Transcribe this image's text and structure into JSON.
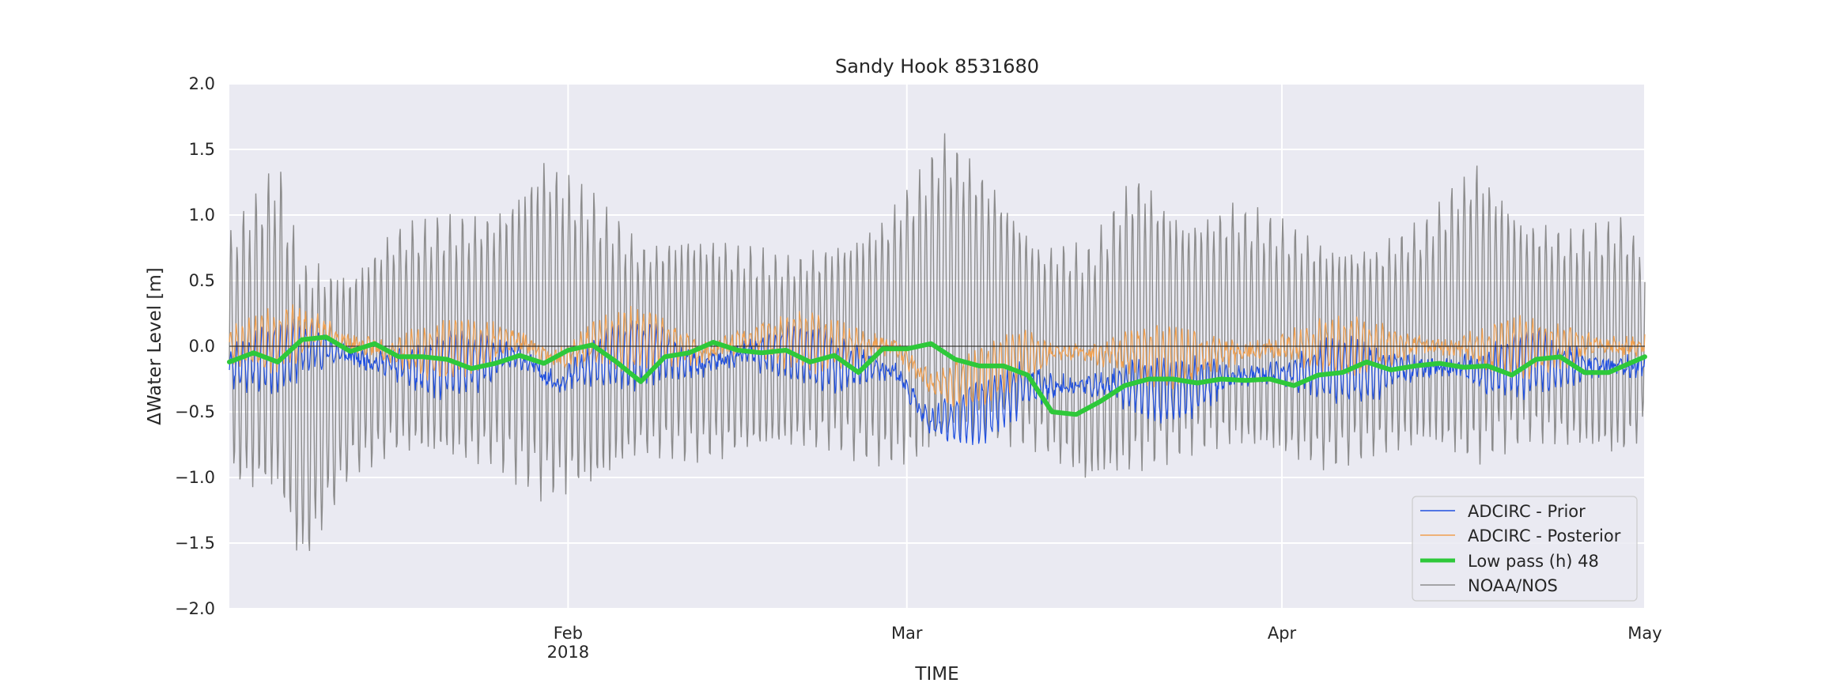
{
  "chart_data": {
    "type": "line",
    "title": "Sandy Hook  8531680",
    "xlabel": "TIME",
    "ylabel": "ΔWater Level [m]",
    "xlim": [
      "2018-01-04",
      "2018-05-01"
    ],
    "ylim": [
      -2.0,
      2.0
    ],
    "yticks": [
      -2.0,
      -1.5,
      -1.0,
      -0.5,
      0.0,
      0.5,
      1.0,
      1.5,
      2.0
    ],
    "ytick_labels": [
      "−2.0",
      "−1.5",
      "−1.0",
      "−0.5",
      "0.0",
      "0.5",
      "1.0",
      "1.5",
      "2.0"
    ],
    "xticks": [
      {
        "date": "2018-02-01",
        "label": "Feb",
        "sublabel": "2018"
      },
      {
        "date": "2018-03-01",
        "label": "Mar",
        "sublabel": ""
      },
      {
        "date": "2018-04-01",
        "label": "Apr",
        "sublabel": ""
      },
      {
        "date": "2018-05-01",
        "label": "May",
        "sublabel": ""
      }
    ],
    "grid": true,
    "legend_position": "lower-right",
    "colors": {
      "background": "#eaeaf2",
      "grid": "#ffffff",
      "prior": "#1f4fe0",
      "posterior": "#f0a050",
      "lowpass": "#2ec83a",
      "noaa": "#8c8c8c",
      "zero_line": "#333333"
    },
    "series": [
      {
        "name": "ADCIRC - Prior",
        "style": "thin",
        "low_frequency": {
          "dates": [
            "2018-01-04",
            "2018-01-08",
            "2018-01-11",
            "2018-01-15",
            "2018-01-20",
            "2018-01-24",
            "2018-01-28",
            "2018-01-31",
            "2018-02-04",
            "2018-02-08",
            "2018-02-12",
            "2018-02-16",
            "2018-02-20",
            "2018-02-24",
            "2018-02-28",
            "2018-03-03",
            "2018-03-07",
            "2018-03-11",
            "2018-03-15",
            "2018-03-19",
            "2018-03-23",
            "2018-03-27",
            "2018-04-01",
            "2018-04-05",
            "2018-04-09",
            "2018-04-14",
            "2018-04-18",
            "2018-04-22",
            "2018-04-26",
            "2018-05-01"
          ],
          "values": [
            -0.15,
            -0.08,
            0.0,
            -0.1,
            -0.18,
            -0.12,
            -0.08,
            -0.28,
            -0.1,
            -0.05,
            -0.15,
            -0.05,
            -0.05,
            -0.15,
            -0.18,
            -0.6,
            -0.5,
            -0.3,
            -0.3,
            -0.3,
            -0.35,
            -0.25,
            -0.2,
            -0.18,
            -0.2,
            -0.15,
            -0.2,
            -0.12,
            -0.15,
            -0.15
          ]
        },
        "tidal_amplitude": 0.22
      },
      {
        "name": "ADCIRC - Posterior",
        "style": "thin",
        "low_frequency": {
          "dates": [
            "2018-01-04",
            "2018-01-08",
            "2018-01-11",
            "2018-01-15",
            "2018-01-20",
            "2018-01-24",
            "2018-01-28",
            "2018-01-31",
            "2018-02-04",
            "2018-02-08",
            "2018-02-12",
            "2018-02-16",
            "2018-02-20",
            "2018-02-24",
            "2018-02-28",
            "2018-03-03",
            "2018-03-07",
            "2018-03-11",
            "2018-03-15",
            "2018-03-19",
            "2018-03-23",
            "2018-03-27",
            "2018-04-01",
            "2018-04-05",
            "2018-04-09",
            "2018-04-14",
            "2018-04-18",
            "2018-04-22",
            "2018-04-26",
            "2018-05-01"
          ],
          "values": [
            0.0,
            0.05,
            0.12,
            0.0,
            -0.05,
            0.0,
            0.05,
            -0.1,
            0.05,
            0.05,
            -0.05,
            0.05,
            0.05,
            0.0,
            0.0,
            -0.3,
            -0.25,
            -0.05,
            -0.05,
            -0.05,
            -0.1,
            -0.05,
            0.0,
            0.0,
            0.0,
            0.0,
            -0.02,
            0.0,
            0.0,
            0.0
          ]
        },
        "tidal_amplitude": 0.2
      },
      {
        "name": "Low pass (h) 48",
        "style": "thick",
        "dates": [
          "2018-01-04",
          "2018-01-06",
          "2018-01-08",
          "2018-01-10",
          "2018-01-12",
          "2018-01-14",
          "2018-01-16",
          "2018-01-18",
          "2018-01-20",
          "2018-01-22",
          "2018-01-24",
          "2018-01-26",
          "2018-01-28",
          "2018-01-30",
          "2018-02-01",
          "2018-02-03",
          "2018-02-05",
          "2018-02-07",
          "2018-02-09",
          "2018-02-11",
          "2018-02-13",
          "2018-02-15",
          "2018-02-17",
          "2018-02-19",
          "2018-02-21",
          "2018-02-23",
          "2018-02-25",
          "2018-02-27",
          "2018-03-01",
          "2018-03-03",
          "2018-03-05",
          "2018-03-07",
          "2018-03-09",
          "2018-03-11",
          "2018-03-13",
          "2018-03-15",
          "2018-03-17",
          "2018-03-19",
          "2018-03-21",
          "2018-03-23",
          "2018-03-25",
          "2018-03-27",
          "2018-03-29",
          "2018-03-31",
          "2018-04-02",
          "2018-04-04",
          "2018-04-06",
          "2018-04-08",
          "2018-04-10",
          "2018-04-12",
          "2018-04-14",
          "2018-04-16",
          "2018-04-18",
          "2018-04-20",
          "2018-04-22",
          "2018-04-24",
          "2018-04-26",
          "2018-04-28",
          "2018-04-30",
          "2018-05-01"
        ],
        "values": [
          -0.12,
          -0.05,
          -0.12,
          0.05,
          0.07,
          -0.04,
          0.02,
          -0.08,
          -0.08,
          -0.1,
          -0.17,
          -0.13,
          -0.07,
          -0.13,
          -0.03,
          0.01,
          -0.12,
          -0.27,
          -0.08,
          -0.05,
          0.03,
          -0.03,
          -0.05,
          -0.03,
          -0.12,
          -0.07,
          -0.2,
          -0.02,
          -0.02,
          0.02,
          -0.1,
          -0.15,
          -0.15,
          -0.22,
          -0.5,
          -0.52,
          -0.42,
          -0.3,
          -0.25,
          -0.25,
          -0.28,
          -0.25,
          -0.26,
          -0.25,
          -0.3,
          -0.22,
          -0.2,
          -0.12,
          -0.18,
          -0.15,
          -0.13,
          -0.16,
          -0.15,
          -0.22,
          -0.1,
          -0.08,
          -0.2,
          -0.2,
          -0.12,
          -0.08
        ]
      },
      {
        "name": "NOAA/NOS",
        "style": "thin",
        "envelope_dates": [
          "2018-01-04",
          "2018-01-08",
          "2018-01-10",
          "2018-01-14",
          "2018-01-18",
          "2018-01-22",
          "2018-01-26",
          "2018-01-30",
          "2018-02-03",
          "2018-02-07",
          "2018-02-11",
          "2018-02-15",
          "2018-02-19",
          "2018-02-23",
          "2018-02-27",
          "2018-03-02",
          "2018-03-04",
          "2018-03-08",
          "2018-03-12",
          "2018-03-16",
          "2018-03-20",
          "2018-03-24",
          "2018-03-28",
          "2018-04-01",
          "2018-04-05",
          "2018-04-09",
          "2018-04-13",
          "2018-04-17",
          "2018-04-21",
          "2018-04-25",
          "2018-04-29",
          "2018-05-01"
        ],
        "envelope_max": [
          0.9,
          1.45,
          0.7,
          0.6,
          0.95,
          1.0,
          1.05,
          1.5,
          1.2,
          0.8,
          0.9,
          0.8,
          0.7,
          0.8,
          1.0,
          1.35,
          1.65,
          1.3,
          0.8,
          0.8,
          1.35,
          1.0,
          1.1,
          1.0,
          0.8,
          0.8,
          1.0,
          1.45,
          1.0,
          0.9,
          1.0,
          0.8
        ],
        "envelope_min": [
          -1.1,
          -1.2,
          -1.75,
          -1.0,
          -0.85,
          -0.9,
          -0.95,
          -1.2,
          -1.15,
          -0.85,
          -0.9,
          -0.85,
          -0.8,
          -0.8,
          -0.95,
          -0.95,
          -0.8,
          -0.75,
          -0.8,
          -1.1,
          -1.0,
          -0.85,
          -0.8,
          -0.9,
          -0.95,
          -0.85,
          -0.8,
          -0.95,
          -0.75,
          -0.8,
          -0.9,
          -0.7
        ]
      }
    ]
  }
}
